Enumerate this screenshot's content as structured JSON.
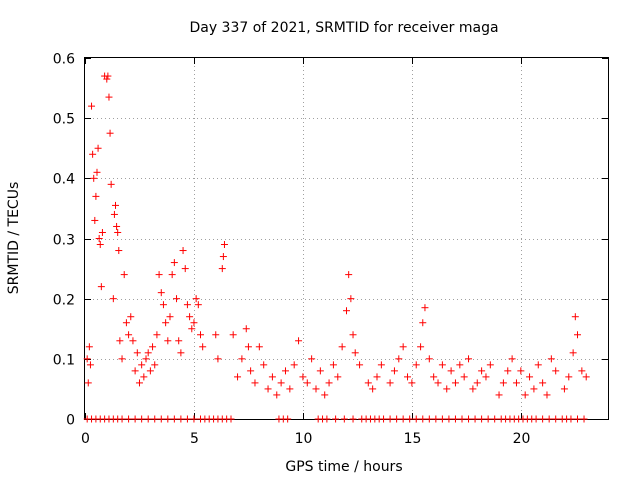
{
  "chart_data": {
    "type": "scatter",
    "title": "Day 337 of 2021, SRMTID for receiver maga",
    "xlabel": "GPS time / hours",
    "ylabel": "SRMTID / TECUs",
    "xlim": [
      0,
      24
    ],
    "ylim": [
      0,
      0.6
    ],
    "x_ticks": [
      0,
      5,
      10,
      15,
      20
    ],
    "x_tick_labels": [
      "0",
      "5",
      "10",
      "15",
      "20"
    ],
    "y_ticks": [
      0,
      0.1,
      0.2,
      0.3,
      0.4,
      0.5,
      0.6
    ],
    "y_tick_labels": [
      "0",
      "0.1",
      "0.2",
      "0.3",
      "0.4",
      "0.5",
      "0.6"
    ],
    "grid": true,
    "marker": "+",
    "series": [
      {
        "name": "SRMTID",
        "color": "#ff0000",
        "points": [
          [
            0.1,
            0.1
          ],
          [
            0.15,
            0.06
          ],
          [
            0.2,
            0.12
          ],
          [
            0.25,
            0.09
          ],
          [
            0.3,
            0.52
          ],
          [
            0.35,
            0.44
          ],
          [
            0.4,
            0.4
          ],
          [
            0.45,
            0.33
          ],
          [
            0.5,
            0.37
          ],
          [
            0.55,
            0.41
          ],
          [
            0.6,
            0.45
          ],
          [
            0.65,
            0.3
          ],
          [
            0.7,
            0.29
          ],
          [
            0.75,
            0.22
          ],
          [
            0.8,
            0.31
          ],
          [
            0.9,
            0.57
          ],
          [
            1.0,
            0.565
          ],
          [
            1.05,
            0.57
          ],
          [
            1.1,
            0.535
          ],
          [
            1.15,
            0.475
          ],
          [
            1.2,
            0.39
          ],
          [
            1.3,
            0.2
          ],
          [
            1.35,
            0.34
          ],
          [
            1.4,
            0.355
          ],
          [
            1.45,
            0.32
          ],
          [
            1.5,
            0.31
          ],
          [
            1.55,
            0.28
          ],
          [
            1.6,
            0.13
          ],
          [
            1.7,
            0.1
          ],
          [
            1.8,
            0.24
          ],
          [
            1.9,
            0.16
          ],
          [
            2.0,
            0.14
          ],
          [
            2.1,
            0.17
          ],
          [
            2.2,
            0.13
          ],
          [
            2.3,
            0.08
          ],
          [
            2.4,
            0.11
          ],
          [
            2.5,
            0.06
          ],
          [
            2.6,
            0.09
          ],
          [
            2.7,
            0.07
          ],
          [
            2.8,
            0.1
          ],
          [
            2.9,
            0.11
          ],
          [
            3.0,
            0.08
          ],
          [
            3.1,
            0.12
          ],
          [
            3.2,
            0.09
          ],
          [
            3.3,
            0.14
          ],
          [
            3.4,
            0.24
          ],
          [
            3.5,
            0.21
          ],
          [
            3.6,
            0.19
          ],
          [
            3.7,
            0.16
          ],
          [
            3.8,
            0.13
          ],
          [
            3.9,
            0.17
          ],
          [
            4.0,
            0.24
          ],
          [
            4.1,
            0.26
          ],
          [
            4.2,
            0.2
          ],
          [
            4.3,
            0.13
          ],
          [
            4.4,
            0.11
          ],
          [
            4.5,
            0.28
          ],
          [
            4.6,
            0.25
          ],
          [
            4.7,
            0.19
          ],
          [
            4.8,
            0.17
          ],
          [
            4.9,
            0.15
          ],
          [
            5.0,
            0.16
          ],
          [
            5.1,
            0.2
          ],
          [
            5.2,
            0.19
          ],
          [
            5.3,
            0.14
          ],
          [
            5.4,
            0.12
          ],
          [
            6.0,
            0.14
          ],
          [
            6.1,
            0.1
          ],
          [
            6.3,
            0.25
          ],
          [
            6.35,
            0.27
          ],
          [
            6.4,
            0.29
          ],
          [
            6.8,
            0.14
          ],
          [
            7.0,
            0.07
          ],
          [
            7.2,
            0.1
          ],
          [
            7.4,
            0.15
          ],
          [
            7.5,
            0.12
          ],
          [
            7.6,
            0.08
          ],
          [
            7.8,
            0.06
          ],
          [
            8.0,
            0.12
          ],
          [
            8.2,
            0.09
          ],
          [
            8.4,
            0.05
          ],
          [
            8.6,
            0.07
          ],
          [
            8.8,
            0.04
          ],
          [
            9.0,
            0.06
          ],
          [
            9.2,
            0.08
          ],
          [
            9.4,
            0.05
          ],
          [
            9.6,
            0.09
          ],
          [
            9.8,
            0.13
          ],
          [
            10.0,
            0.07
          ],
          [
            10.2,
            0.06
          ],
          [
            10.4,
            0.1
          ],
          [
            10.6,
            0.05
          ],
          [
            10.8,
            0.08
          ],
          [
            11.0,
            0.04
          ],
          [
            11.2,
            0.06
          ],
          [
            11.4,
            0.09
          ],
          [
            11.6,
            0.07
          ],
          [
            11.8,
            0.12
          ],
          [
            12.0,
            0.18
          ],
          [
            12.1,
            0.24
          ],
          [
            12.2,
            0.2
          ],
          [
            12.3,
            0.14
          ],
          [
            12.4,
            0.11
          ],
          [
            12.6,
            0.09
          ],
          [
            13.0,
            0.06
          ],
          [
            13.2,
            0.05
          ],
          [
            13.4,
            0.07
          ],
          [
            13.6,
            0.09
          ],
          [
            14.0,
            0.06
          ],
          [
            14.2,
            0.08
          ],
          [
            14.4,
            0.1
          ],
          [
            14.6,
            0.12
          ],
          [
            14.8,
            0.07
          ],
          [
            15.0,
            0.06
          ],
          [
            15.2,
            0.09
          ],
          [
            15.4,
            0.12
          ],
          [
            15.5,
            0.16
          ],
          [
            15.6,
            0.185
          ],
          [
            15.8,
            0.1
          ],
          [
            16.0,
            0.07
          ],
          [
            16.2,
            0.06
          ],
          [
            16.4,
            0.09
          ],
          [
            16.6,
            0.05
          ],
          [
            16.8,
            0.08
          ],
          [
            17.0,
            0.06
          ],
          [
            17.2,
            0.09
          ],
          [
            17.4,
            0.07
          ],
          [
            17.6,
            0.1
          ],
          [
            17.8,
            0.05
          ],
          [
            18.0,
            0.06
          ],
          [
            18.2,
            0.08
          ],
          [
            18.4,
            0.07
          ],
          [
            18.6,
            0.09
          ],
          [
            19.0,
            0.04
          ],
          [
            19.2,
            0.06
          ],
          [
            19.4,
            0.08
          ],
          [
            19.6,
            0.1
          ],
          [
            19.8,
            0.06
          ],
          [
            20.0,
            0.08
          ],
          [
            20.2,
            0.04
          ],
          [
            20.4,
            0.07
          ],
          [
            20.6,
            0.05
          ],
          [
            20.8,
            0.09
          ],
          [
            21.0,
            0.06
          ],
          [
            21.2,
            0.04
          ],
          [
            21.4,
            0.1
          ],
          [
            21.6,
            0.08
          ],
          [
            22.0,
            0.05
          ],
          [
            22.2,
            0.07
          ],
          [
            22.4,
            0.11
          ],
          [
            22.5,
            0.17
          ],
          [
            22.6,
            0.14
          ],
          [
            22.8,
            0.08
          ],
          [
            23.0,
            0.07
          ]
        ],
        "baseline_x": [
          0.1,
          0.3,
          0.5,
          0.7,
          0.9,
          1.1,
          1.3,
          1.5,
          1.7,
          2.0,
          2.3,
          2.6,
          2.9,
          3.2,
          3.5,
          3.8,
          4.1,
          4.4,
          4.7,
          5.0,
          5.3,
          5.5,
          5.7,
          5.9,
          6.1,
          6.3,
          6.5,
          6.7,
          8.9,
          9.1,
          9.3,
          10.7,
          10.9,
          11.1,
          11.5,
          11.9,
          12.3,
          12.7,
          12.9,
          13.1,
          13.3,
          13.5,
          13.7,
          14.0,
          14.3,
          14.6,
          14.9,
          15.2,
          15.5,
          15.8,
          16.1,
          16.4,
          16.7,
          17.0,
          17.3,
          17.6,
          17.9,
          18.2,
          18.5,
          18.8,
          19.1,
          19.3,
          19.5,
          19.7,
          19.9,
          20.1,
          20.3,
          20.5,
          20.7,
          21.0,
          21.3,
          21.6,
          21.9,
          22.1,
          22.3,
          22.6,
          22.9
        ]
      }
    ]
  }
}
